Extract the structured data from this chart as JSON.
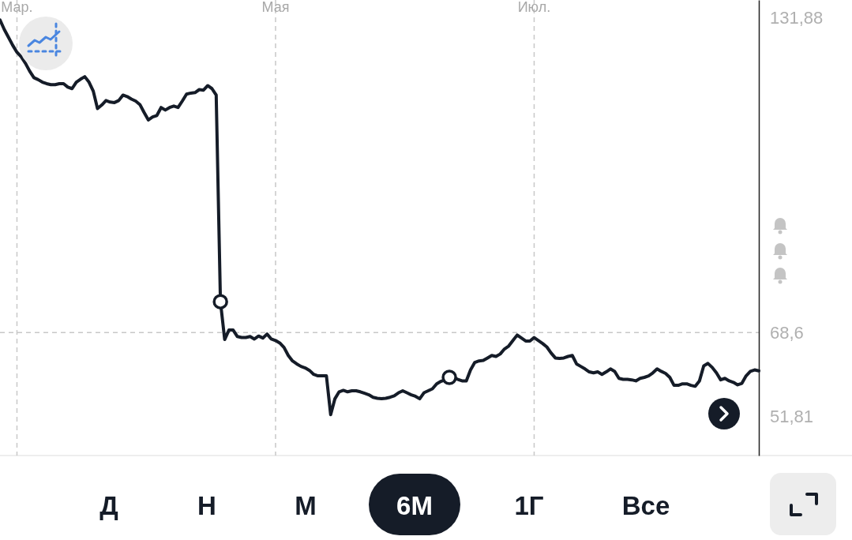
{
  "chart_data": {
    "type": "line",
    "categories": [
      null,
      null,
      null,
      null,
      "Мар.",
      null,
      null,
      null,
      null,
      null,
      null,
      null,
      null,
      null,
      null,
      null,
      null,
      null,
      null,
      null,
      null,
      null,
      null,
      null,
      null,
      null,
      null,
      null,
      null,
      null,
      null,
      null,
      null,
      null,
      null,
      null,
      null,
      null,
      null,
      null,
      null,
      null,
      null,
      null,
      null,
      null,
      null,
      null,
      null,
      null,
      null,
      null,
      null,
      null,
      null,
      null,
      null,
      null,
      null,
      null,
      null,
      null,
      null,
      null,
      null,
      "Мая",
      null,
      null,
      null,
      null,
      null,
      null,
      null,
      null,
      null,
      null,
      null,
      null,
      null,
      null,
      null,
      null,
      null,
      null,
      null,
      null,
      null,
      null,
      null,
      null,
      null,
      null,
      null,
      null,
      null,
      null,
      null,
      null,
      null,
      null,
      null,
      null,
      null,
      null,
      null,
      null,
      null,
      null,
      null,
      null,
      null,
      null,
      null,
      null,
      null,
      null,
      null,
      null,
      null,
      null,
      null,
      null,
      null,
      null,
      null,
      null,
      "Июл.",
      null,
      null,
      null,
      null,
      null,
      null,
      null,
      null,
      null,
      null,
      null,
      null,
      null,
      null,
      null,
      null,
      null,
      null,
      null,
      null,
      null,
      null,
      null,
      null,
      null,
      null,
      null,
      null,
      null,
      null,
      null,
      null,
      null,
      null,
      null,
      null,
      null,
      null,
      null,
      null,
      null,
      null,
      null,
      null,
      null,
      null,
      null,
      null,
      null,
      null,
      null,
      null,
      null
    ],
    "series": [
      {
        "color": "#151c28",
        "values": [
          131.4,
          129.5,
          127.9,
          126.3,
          124.9,
          124.0,
          122.7,
          121.1,
          119.8,
          119.4,
          118.9,
          118.6,
          118.4,
          118.4,
          118.6,
          118.6,
          117.9,
          117.6,
          118.9,
          119.5,
          120.0,
          118.9,
          117.1,
          113.6,
          114.3,
          115.2,
          114.9,
          114.8,
          115.2,
          116.3,
          116.0,
          115.5,
          115.1,
          114.4,
          112.8,
          111.3,
          111.9,
          112.2,
          113.8,
          113.3,
          113.8,
          114.1,
          113.8,
          115.1,
          116.5,
          116.7,
          116.8,
          117.4,
          117.3,
          118.2,
          117.6,
          116.3,
          74.8,
          67.2,
          69.1,
          69.1,
          67.8,
          67.6,
          67.6,
          67.8,
          67.3,
          67.9,
          67.5,
          68.3,
          67.3,
          67.0,
          66.5,
          65.6,
          64.0,
          62.9,
          62.3,
          61.8,
          61.5,
          61.0,
          60.2,
          59.9,
          59.9,
          59.9,
          52.1,
          55.3,
          56.7,
          57.0,
          56.7,
          56.9,
          56.9,
          56.7,
          56.4,
          56.1,
          55.6,
          55.4,
          55.3,
          55.4,
          55.6,
          55.9,
          56.5,
          56.9,
          56.5,
          56.1,
          55.8,
          55.3,
          56.5,
          56.9,
          57.3,
          58.3,
          58.8,
          59.1,
          59.6,
          59.6,
          59.2,
          58.9,
          58.9,
          61.1,
          62.6,
          62.9,
          63.0,
          63.5,
          64.0,
          63.8,
          64.3,
          65.3,
          65.9,
          67.0,
          68.1,
          67.5,
          66.9,
          66.9,
          67.6,
          67.0,
          66.4,
          65.7,
          64.5,
          63.5,
          63.4,
          63.5,
          63.8,
          64.0,
          62.3,
          61.8,
          61.3,
          60.7,
          60.5,
          60.7,
          60.2,
          60.7,
          61.3,
          60.8,
          59.4,
          59.2,
          59.2,
          59.1,
          58.9,
          59.4,
          59.6,
          59.9,
          60.5,
          61.3,
          60.8,
          60.4,
          59.6,
          58.0,
          58.0,
          58.3,
          58.3,
          58.0,
          57.8,
          58.9,
          61.9,
          62.4,
          61.6,
          60.5,
          59.1,
          59.4,
          58.9,
          58.6,
          58.1,
          58.4,
          59.9,
          60.8,
          61.1,
          60.9
        ]
      },
      {
        "type": "scatter",
        "color": "#151c28",
        "marker": "circle",
        "values": [
          null,
          null,
          null,
          null,
          null,
          null,
          null,
          null,
          null,
          null,
          null,
          null,
          null,
          null,
          null,
          null,
          null,
          null,
          null,
          null,
          null,
          null,
          null,
          null,
          null,
          null,
          null,
          null,
          null,
          null,
          null,
          null,
          null,
          null,
          null,
          null,
          null,
          null,
          null,
          null,
          null,
          null,
          null,
          null,
          null,
          null,
          null,
          null,
          null,
          null,
          null,
          null,
          74.8,
          null,
          null,
          null,
          null,
          null,
          null,
          null,
          null,
          null,
          null,
          null,
          null,
          null,
          null,
          null,
          null,
          null,
          null,
          null,
          null,
          null,
          null,
          null,
          null,
          null,
          null,
          null,
          null,
          null,
          null,
          null,
          null,
          null,
          null,
          null,
          null,
          null,
          null,
          null,
          null,
          null,
          null,
          null,
          null,
          null,
          null,
          null,
          null,
          null,
          null,
          null,
          null,
          null,
          59.6,
          null,
          null,
          null,
          null,
          null,
          null,
          null,
          null,
          null,
          null,
          null,
          null,
          null,
          null,
          null,
          null,
          null,
          null,
          null,
          null,
          null,
          null,
          null,
          null,
          null,
          null,
          null,
          null,
          null,
          null,
          null,
          null,
          null,
          null,
          null,
          null,
          null,
          null,
          null,
          null,
          null,
          null,
          null,
          null,
          null,
          null,
          null,
          null,
          null,
          null,
          null,
          null,
          null,
          null,
          null,
          null,
          null,
          null,
          null,
          null,
          null,
          null,
          null,
          null,
          null,
          null,
          null,
          null,
          null,
          null,
          null,
          null,
          null
        ]
      }
    ],
    "ylim": [
      43.9,
      135.4
    ],
    "yticks": [
      {
        "value": 131.88,
        "label": "131,88"
      },
      {
        "value": 68.6,
        "label": "68,6"
      },
      {
        "value": 51.81,
        "label": "51,81"
      }
    ],
    "grid": "x",
    "ref_lines": [
      {
        "axis": "y",
        "value": 68.6,
        "color": "#c8c8c8",
        "line_style": "dashed"
      }
    ],
    "annotations": [
      "Д",
      "Н",
      "М",
      "6М",
      "1Г",
      "Все"
    ]
  }
}
